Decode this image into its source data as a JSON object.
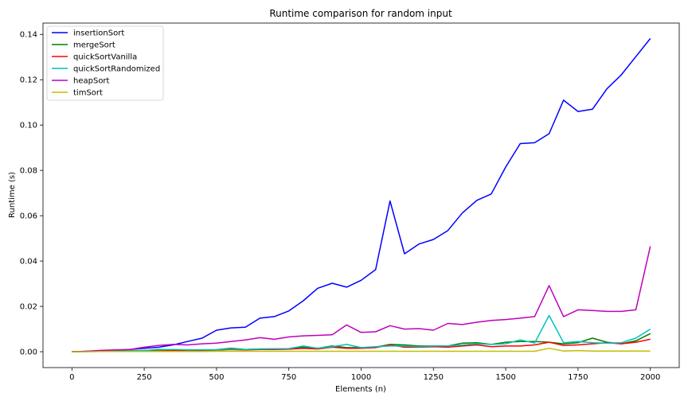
{
  "chart_data": {
    "type": "line",
    "title": "Runtime comparison for random input",
    "xlabel": "Elements (n)",
    "ylabel": "Runtime (s)",
    "xlim": [
      -100,
      2100
    ],
    "ylim": [
      -0.007,
      0.145
    ],
    "xticks": [
      0,
      250,
      500,
      750,
      1000,
      1250,
      1500,
      1750,
      2000
    ],
    "xtick_labels": [
      "0",
      "250",
      "500",
      "750",
      "1000",
      "1250",
      "1500",
      "1750",
      "2000"
    ],
    "yticks": [
      0.0,
      0.02,
      0.04,
      0.06,
      0.08,
      0.1,
      0.12,
      0.14
    ],
    "ytick_labels": [
      "0.00",
      "0.02",
      "0.04",
      "0.06",
      "0.08",
      "0.10",
      "0.12",
      "0.14"
    ],
    "grid": false,
    "legend_position": "top-left",
    "x": [
      0,
      50,
      100,
      150,
      200,
      250,
      300,
      350,
      400,
      450,
      500,
      550,
      600,
      650,
      700,
      750,
      800,
      850,
      900,
      950,
      1000,
      1050,
      1100,
      1150,
      1200,
      1250,
      1300,
      1350,
      1400,
      1450,
      1500,
      1550,
      1600,
      1650,
      1700,
      1750,
      1800,
      1850,
      1900,
      1950,
      2000
    ],
    "series": [
      {
        "name": "insertionSort",
        "color": "#0000ff",
        "values": [
          0.0,
          0.0002,
          0.0005,
          0.0007,
          0.001,
          0.0015,
          0.002,
          0.003,
          0.0045,
          0.006,
          0.0095,
          0.0105,
          0.0108,
          0.0148,
          0.0155,
          0.018,
          0.0225,
          0.028,
          0.0302,
          0.0285,
          0.0315,
          0.0362,
          0.0665,
          0.0432,
          0.0475,
          0.0495,
          0.0535,
          0.0612,
          0.0668,
          0.0696,
          0.0815,
          0.0918,
          0.0922,
          0.0962,
          0.111,
          0.106,
          0.107,
          0.116,
          0.1222,
          0.1302,
          0.1382
        ]
      },
      {
        "name": "mergeSort",
        "color": "#008000",
        "values": [
          0.0,
          0.0001,
          0.0002,
          0.0003,
          0.0004,
          0.0005,
          0.001,
          0.0008,
          0.0008,
          0.0008,
          0.0009,
          0.0015,
          0.001,
          0.0012,
          0.0012,
          0.0013,
          0.002,
          0.0015,
          0.0025,
          0.0018,
          0.0018,
          0.002,
          0.0032,
          0.003,
          0.0025,
          0.0025,
          0.0025,
          0.0038,
          0.004,
          0.0032,
          0.0042,
          0.0045,
          0.0045,
          0.0042,
          0.0035,
          0.004,
          0.006,
          0.0042,
          0.0035,
          0.0048,
          0.008
        ]
      },
      {
        "name": "quickSortVanilla",
        "color": "#ff0000",
        "values": [
          0.0,
          0.0001,
          0.0002,
          0.0002,
          0.0003,
          0.0004,
          0.0006,
          0.0006,
          0.0006,
          0.0006,
          0.0007,
          0.001,
          0.0008,
          0.001,
          0.001,
          0.0011,
          0.0015,
          0.0012,
          0.002,
          0.0015,
          0.0015,
          0.0018,
          0.003,
          0.002,
          0.002,
          0.0022,
          0.002,
          0.0025,
          0.003,
          0.0022,
          0.0025,
          0.0025,
          0.003,
          0.0042,
          0.0028,
          0.003,
          0.0035,
          0.004,
          0.0035,
          0.0042,
          0.0055
        ]
      },
      {
        "name": "quickSortRandomized",
        "color": "#00bfbf",
        "values": [
          0.0,
          0.0001,
          0.0002,
          0.0003,
          0.0004,
          0.0006,
          0.0008,
          0.001,
          0.0008,
          0.0008,
          0.0008,
          0.0012,
          0.001,
          0.0012,
          0.0013,
          0.0014,
          0.0025,
          0.0015,
          0.0022,
          0.0032,
          0.0018,
          0.0022,
          0.0025,
          0.0025,
          0.0022,
          0.0025,
          0.0025,
          0.003,
          0.0035,
          0.0032,
          0.0035,
          0.0052,
          0.0038,
          0.016,
          0.004,
          0.0045,
          0.004,
          0.0038,
          0.004,
          0.006,
          0.01
        ]
      },
      {
        "name": "heapSort",
        "color": "#bf00bf",
        "values": [
          0.0,
          0.0002,
          0.0006,
          0.0008,
          0.001,
          0.002,
          0.0028,
          0.0032,
          0.003,
          0.0035,
          0.0038,
          0.0045,
          0.0052,
          0.0062,
          0.0055,
          0.0065,
          0.007,
          0.0072,
          0.0075,
          0.0118,
          0.0085,
          0.0088,
          0.0115,
          0.01,
          0.0102,
          0.0095,
          0.0125,
          0.012,
          0.013,
          0.0138,
          0.0142,
          0.0148,
          0.0155,
          0.0292,
          0.0155,
          0.0185,
          0.0182,
          0.0178,
          0.0178,
          0.0185,
          0.0465
        ]
      },
      {
        "name": "timSort",
        "color": "#bfbf00",
        "values": [
          0.0,
          0.0,
          0.0001,
          0.0001,
          0.0001,
          0.0001,
          0.0001,
          0.0001,
          0.0001,
          0.0001,
          0.0002,
          0.0002,
          0.0002,
          0.0002,
          0.0002,
          0.0002,
          0.0002,
          0.0002,
          0.0002,
          0.0002,
          0.0002,
          0.0002,
          0.0002,
          0.0002,
          0.0002,
          0.0002,
          0.0002,
          0.0002,
          0.0002,
          0.0002,
          0.0002,
          0.0002,
          0.0002,
          0.0015,
          0.0003,
          0.0005,
          0.0003,
          0.0003,
          0.0003,
          0.0003,
          0.0003
        ]
      }
    ]
  }
}
